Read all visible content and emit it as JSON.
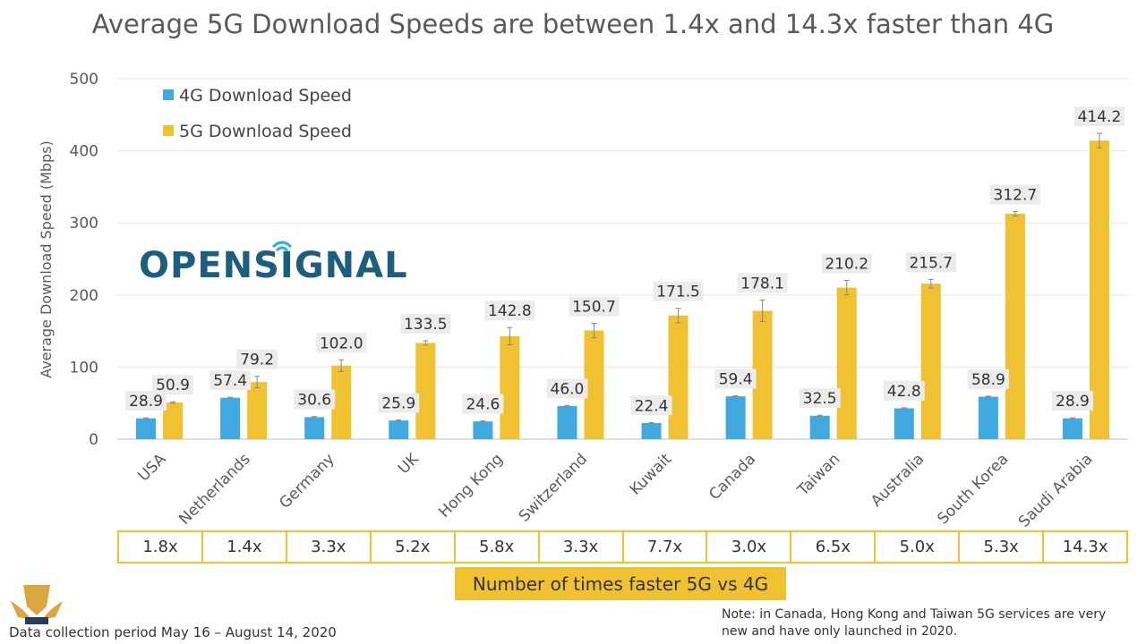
{
  "title": "Average 5G Download Speeds are between 1.4x and 14.3x faster than 4G",
  "brand": "OPENSIGNAL",
  "chart_data": {
    "type": "bar",
    "ylabel": "Average Download Speed (Mbps)",
    "xlabel": "",
    "ylim": [
      0,
      500
    ],
    "yticks": [
      0,
      100,
      200,
      300,
      400,
      500
    ],
    "grid": true,
    "legend_position": "top-left",
    "categories": [
      "USA",
      "Netherlands",
      "Germany",
      "UK",
      "Hong Kong",
      "Switzerland",
      "Kuwait",
      "Canada",
      "Taiwan",
      "Australia",
      "South Korea",
      "Saudi Arabia"
    ],
    "series": [
      {
        "name": "4G Download Speed",
        "color": "#3fa9e0",
        "values": [
          28.9,
          57.4,
          30.6,
          25.9,
          24.6,
          46.0,
          22.4,
          59.4,
          32.5,
          42.8,
          58.9,
          28.9
        ]
      },
      {
        "name": "5G Download Speed",
        "color": "#f0c232",
        "values": [
          50.9,
          79.2,
          102.0,
          133.5,
          142.8,
          150.7,
          171.5,
          178.1,
          210.2,
          215.7,
          312.7,
          414.2
        ]
      }
    ],
    "value_labels": [
      [
        "28.9",
        "57.4",
        "30.6",
        "25.9",
        "24.6",
        "46.0",
        "22.4",
        "59.4",
        "32.5",
        "42.8",
        "58.9",
        "28.9"
      ],
      [
        "50.9",
        "79.2",
        "102.0",
        "133.5",
        "142.8",
        "150.7",
        "171.5",
        "178.1",
        "210.2",
        "215.7",
        "312.7",
        "414.2"
      ]
    ],
    "error_margin_5g": [
      1,
      8,
      8,
      3,
      12,
      10,
      10,
      15,
      10,
      6,
      3,
      10
    ]
  },
  "ratio_table": {
    "values": [
      "1.8x",
      "1.4x",
      "3.3x",
      "5.2x",
      "5.8x",
      "3.3x",
      "7.7x",
      "3.0x",
      "6.5x",
      "5.0x",
      "5.3x",
      "14.3x"
    ],
    "caption": "Number of times faster 5G vs 4G"
  },
  "footer": {
    "period": "Data collection period May 16 – August 14, 2020",
    "note": "Note: in Canada, Hong Kong and Taiwan 5G services are very new and have only launched in 2020."
  }
}
